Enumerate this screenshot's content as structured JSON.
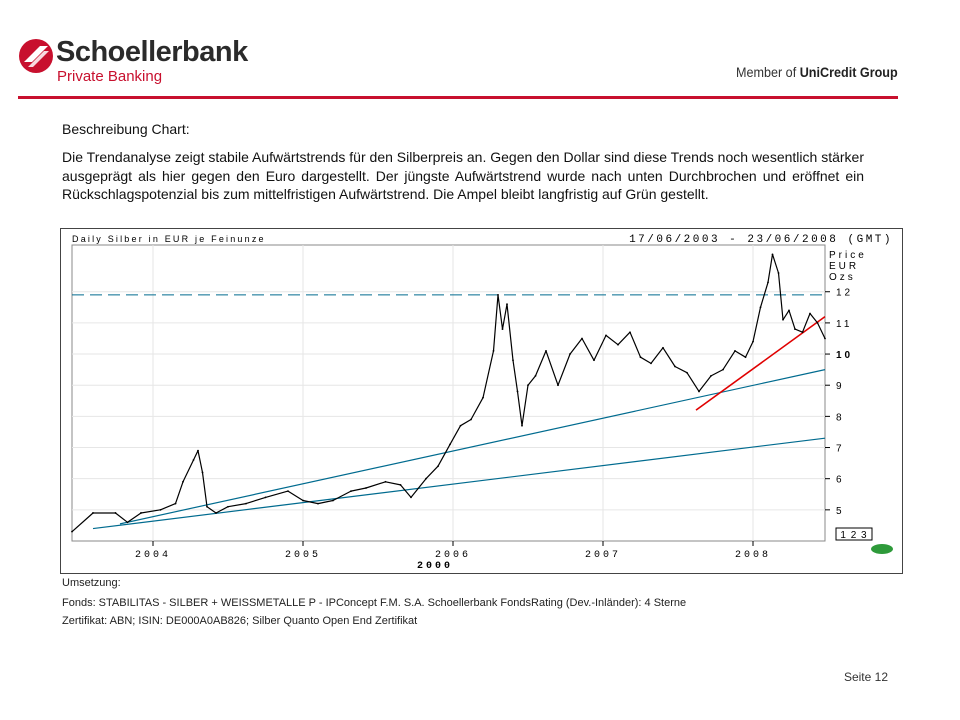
{
  "header": {
    "bank_name": "Schoellerbank",
    "bank_subtitle": "Private Banking",
    "member_prefix": "Member of ",
    "member_group": "UniCredit Group"
  },
  "colors": {
    "brand_red": "#c8102e",
    "trend_line": "#006b8f",
    "short_trend": "#e00000",
    "price": "#000000",
    "signal": "#2e9a3a"
  },
  "content": {
    "heading": "Beschreibung Chart:",
    "paragraph": "Die Trendanalyse zeigt stabile Aufwärtstrends für den Silberpreis an. Gegen den Dollar sind diese Trends noch wesentlich stärker ausgeprägt als hier gegen den Euro dargestellt. Der jüngste Aufwärtstrend wurde nach unten Durchbrochen und eröffnet ein Rückschlagspotenzial bis zum mittelfristigen Aufwärtstrend. Die Ampel bleibt langfristig auf Grün gestellt."
  },
  "chart_data": {
    "type": "line",
    "title": "Daily Silber in EUR je Feinunze",
    "date_range": "17/06/2003 - 23/06/2008 (GMT)",
    "price_label": [
      "Price",
      "EUR",
      "Ozs"
    ],
    "y_ticks": [
      "12",
      "11",
      "10",
      "9",
      "8",
      "7",
      "6",
      "5"
    ],
    "ylim": [
      4,
      13.5
    ],
    "x_ticks": [
      "2004",
      "2005",
      "2006",
      "2007",
      "2008"
    ],
    "x_sub_label": "2000",
    "xlim": [
      2003.46,
      2008.48
    ],
    "page_marker": "1 2 3",
    "resistance_level": 11.9,
    "series": [
      {
        "name": "Silber EUR",
        "x": [
          2003.46,
          2003.6,
          2003.75,
          2003.83,
          2003.92,
          2004.05,
          2004.15,
          2004.2,
          2004.27,
          2004.3,
          2004.33,
          2004.36,
          2004.42,
          2004.5,
          2004.62,
          2004.75,
          2004.9,
          2005.0,
          2005.1,
          2005.2,
          2005.32,
          2005.42,
          2005.55,
          2005.65,
          2005.72,
          2005.82,
          2005.9,
          2005.98,
          2006.05,
          2006.12,
          2006.2,
          2006.27,
          2006.3,
          2006.33,
          2006.36,
          2006.4,
          2006.43,
          2006.46,
          2006.5,
          2006.55,
          2006.62,
          2006.7,
          2006.78,
          2006.86,
          2006.94,
          2007.02,
          2007.1,
          2007.18,
          2007.25,
          2007.32,
          2007.4,
          2007.48,
          2007.56,
          2007.64,
          2007.72,
          2007.8,
          2007.88,
          2007.95,
          2008.0,
          2008.05,
          2008.1,
          2008.13,
          2008.17,
          2008.2,
          2008.24,
          2008.28,
          2008.33,
          2008.38,
          2008.43,
          2008.48
        ],
        "values": [
          4.3,
          4.9,
          4.9,
          4.6,
          4.9,
          5.0,
          5.2,
          5.9,
          6.6,
          6.9,
          6.2,
          5.1,
          4.9,
          5.1,
          5.2,
          5.4,
          5.6,
          5.3,
          5.2,
          5.3,
          5.6,
          5.7,
          5.9,
          5.8,
          5.4,
          6.0,
          6.4,
          7.1,
          7.7,
          7.9,
          8.6,
          10.1,
          11.9,
          10.8,
          11.6,
          9.8,
          8.8,
          7.7,
          9.0,
          9.3,
          10.1,
          9.0,
          10.0,
          10.5,
          9.8,
          10.6,
          10.3,
          10.7,
          9.9,
          9.7,
          10.2,
          9.6,
          9.4,
          8.8,
          9.3,
          9.5,
          10.1,
          9.9,
          10.4,
          11.5,
          12.3,
          13.2,
          12.6,
          11.1,
          11.4,
          10.8,
          10.7,
          11.3,
          11.0,
          10.5
        ]
      }
    ],
    "trendlines": [
      {
        "name": "langfristig",
        "color": "#006b8f",
        "x": [
          2003.78,
          2008.48
        ],
        "values": [
          4.55,
          9.5
        ]
      },
      {
        "name": "mittelfristig",
        "color": "#006b8f",
        "x": [
          2003.6,
          2008.48
        ],
        "values": [
          4.4,
          7.3
        ]
      },
      {
        "name": "kurzfristig",
        "color": "#e00000",
        "x": [
          2007.62,
          2008.48
        ],
        "values": [
          8.2,
          11.2
        ]
      }
    ]
  },
  "footer": {
    "umsetzung_label": "Umsetzung:",
    "fonds": "Fonds: STABILITAS - SILBER + WEISSMETALLE P - IPConcept F.M. S.A. Schoellerbank FondsRating (Dev.-Inländer): 4 Sterne",
    "zertifikat": "Zertifikat: ABN; ISIN: DE000A0AB826; Silber Quanto Open End Zertifikat",
    "page": "Seite 12"
  }
}
